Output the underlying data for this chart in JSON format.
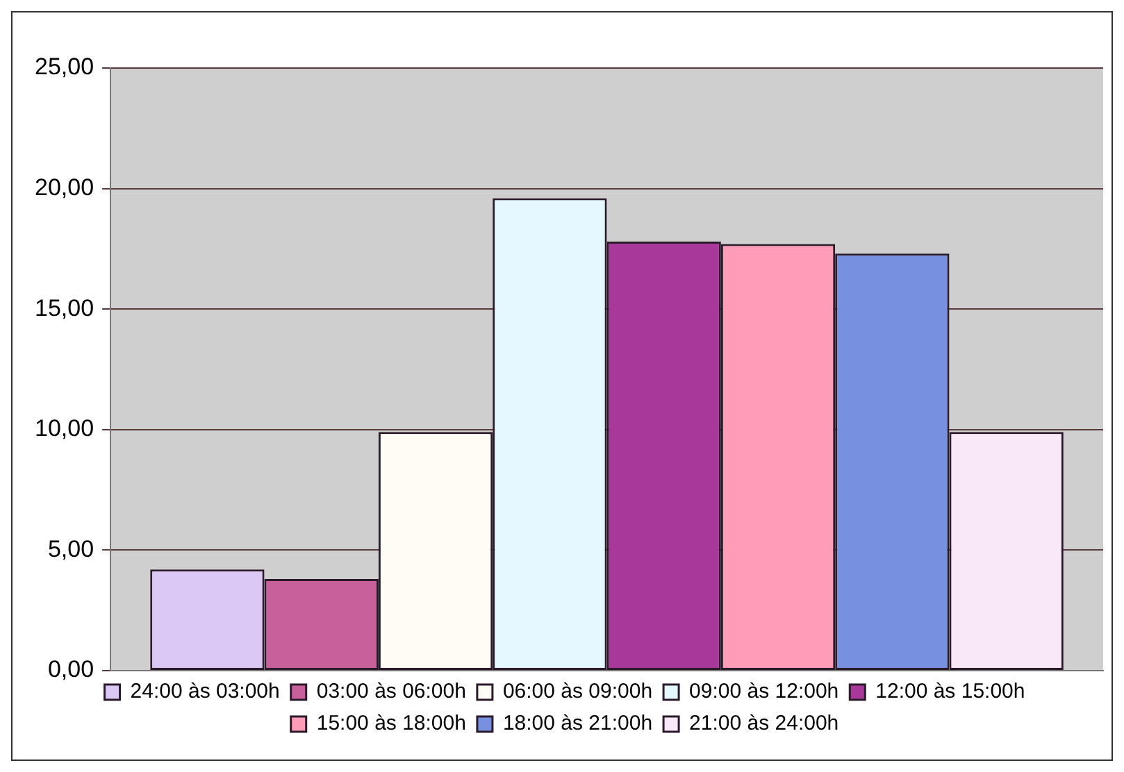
{
  "chart_data": {
    "type": "bar",
    "categories": [
      null
    ],
    "series": [
      {
        "name": "24:00 às 03:00h",
        "color": "#dcc8f5",
        "values": [
          4.2
        ]
      },
      {
        "name": "03:00 às 06:00h",
        "color": "#c8609c",
        "values": [
          3.8
        ]
      },
      {
        "name": "06:00 às 09:00h",
        "color": "#fffcf5",
        "values": [
          9.9
        ]
      },
      {
        "name": "09:00 às 12:00h",
        "color": "#e6f8ff",
        "values": [
          19.6
        ]
      },
      {
        "name": "12:00 às 15:00h",
        "color": "#a8389a",
        "values": [
          17.8
        ]
      },
      {
        "name": "15:00 às 18:00h",
        "color": "#ff9cb8",
        "values": [
          17.7
        ]
      },
      {
        "name": "18:00 às 21:00h",
        "color": "#7890e0",
        "values": [
          17.3
        ]
      },
      {
        "name": "21:00 às 24:00h",
        "color": "#f8e8f8",
        "values": [
          9.9
        ]
      }
    ],
    "ylim": [
      0,
      25
    ],
    "yticks": [
      {
        "value": 0,
        "label": "0,00"
      },
      {
        "value": 5,
        "label": "5,00"
      },
      {
        "value": 10,
        "label": "10,00"
      },
      {
        "value": 15,
        "label": "15,00"
      },
      {
        "value": 20,
        "label": "20,00"
      },
      {
        "value": 25,
        "label": "25,00"
      }
    ],
    "grid": "y",
    "legend": "bottom"
  }
}
